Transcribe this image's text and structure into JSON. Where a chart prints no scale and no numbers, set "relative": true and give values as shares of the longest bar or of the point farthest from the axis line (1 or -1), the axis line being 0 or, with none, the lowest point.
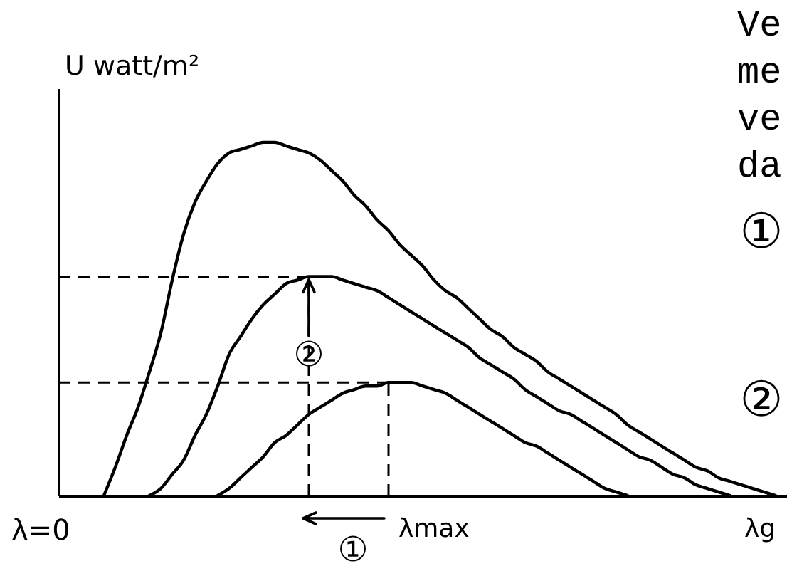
{
  "chart_data": {
    "type": "line",
    "relative": true,
    "ylabel": "U watt/m²",
    "categories": [
      null,
      null,
      null,
      null,
      null,
      null,
      null,
      null,
      null,
      null,
      null,
      null,
      null,
      null,
      null,
      null,
      null,
      null,
      null,
      null,
      null,
      null,
      null,
      null,
      null,
      null,
      null,
      null,
      null,
      null,
      null,
      null,
      null,
      null,
      null,
      null,
      null,
      null,
      null,
      null,
      null,
      null,
      null,
      null,
      null,
      null,
      null,
      null,
      null,
      null,
      null,
      null,
      null,
      null,
      null,
      null,
      null,
      null,
      null,
      null,
      null,
      null,
      null,
      null,
      null
    ],
    "series": [
      {
        "color": "#000000",
        "values": [
          null,
          null,
          null,
          null,
          0,
          0.08,
          0.17,
          0.25,
          0.35,
          0.46,
          0.61,
          0.74,
          0.83,
          0.89,
          0.94,
          0.97,
          0.98,
          0.99,
          1,
          1,
          0.99,
          0.98,
          0.97,
          0.95,
          0.92,
          0.89,
          0.85,
          0.82,
          0.78,
          0.75,
          0.71,
          0.68,
          0.65,
          0.61,
          0.58,
          0.56,
          0.53,
          0.5,
          0.47,
          0.45,
          0.42,
          0.4,
          0.38,
          0.35,
          0.33,
          0.31,
          0.29,
          0.27,
          0.25,
          0.23,
          0.2,
          0.18,
          0.16,
          0.14,
          0.12,
          0.1,
          0.08,
          0.07,
          0.05,
          0.04,
          0.03,
          0.02,
          0.01,
          0,
          null
        ]
      },
      {
        "color": "#000000",
        "values": [
          null,
          null,
          null,
          null,
          null,
          null,
          null,
          null,
          0,
          0.02,
          0.06,
          0.1,
          0.17,
          0.23,
          0.31,
          0.4,
          0.45,
          0.5,
          0.54,
          0.57,
          0.6,
          0.61,
          0.62,
          0.62,
          0.62,
          0.61,
          0.6,
          0.59,
          0.58,
          0.56,
          0.54,
          0.52,
          0.5,
          0.48,
          0.46,
          0.44,
          0.42,
          0.39,
          0.37,
          0.35,
          0.33,
          0.3,
          0.28,
          0.26,
          0.24,
          0.23,
          0.21,
          0.19,
          0.17,
          0.15,
          0.13,
          0.11,
          0.1,
          0.08,
          0.06,
          0.05,
          0.03,
          0.02,
          0.01,
          0,
          null,
          null,
          null,
          null,
          null
        ]
      },
      {
        "color": "#000000",
        "values": [
          null,
          null,
          null,
          null,
          null,
          null,
          null,
          null,
          null,
          null,
          null,
          null,
          null,
          null,
          0,
          0.02,
          0.05,
          0.08,
          0.11,
          0.15,
          0.17,
          0.2,
          0.23,
          0.25,
          0.27,
          0.29,
          0.3,
          0.31,
          0.31,
          0.32,
          0.32,
          0.32,
          0.31,
          0.3,
          0.29,
          0.27,
          0.25,
          0.23,
          0.21,
          0.19,
          0.17,
          0.15,
          0.14,
          0.12,
          0.1,
          0.08,
          0.06,
          0.04,
          0.02,
          0.01,
          0,
          null,
          null,
          null,
          null,
          null,
          null,
          null,
          null,
          null,
          null,
          null,
          null,
          null,
          null
        ]
      }
    ],
    "ref_lines": [
      {
        "axis": "y",
        "value": 0.62,
        "color": "#000000",
        "line_style": "dashed"
      },
      {
        "axis": "y",
        "value": 0.32,
        "color": "#000000",
        "line_style": "dashed"
      }
    ],
    "annotations": [
      "λ=0",
      "λmax",
      "λg",
      "①",
      "②",
      "Ve\nme\nve\nda",
      "①",
      "②"
    ]
  }
}
